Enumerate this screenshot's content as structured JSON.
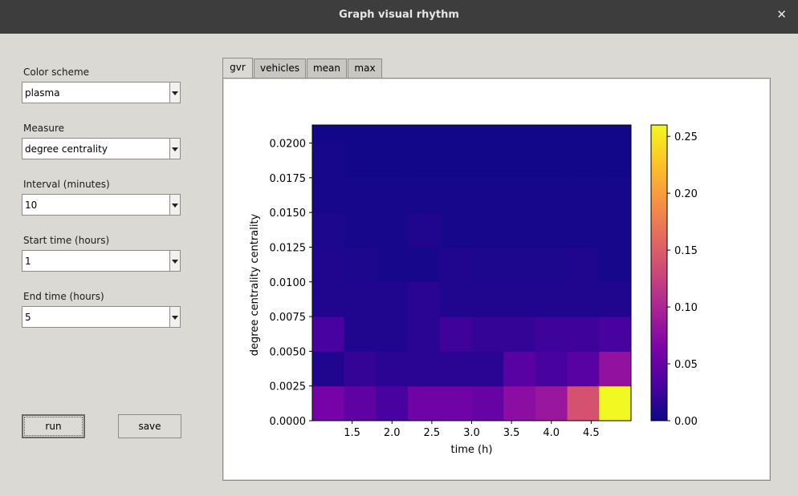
{
  "window": {
    "title": "Graph visual rhythm"
  },
  "controls": {
    "color_scheme": {
      "label": "Color scheme",
      "value": "plasma"
    },
    "measure": {
      "label": "Measure",
      "value": "degree centrality"
    },
    "interval": {
      "label": "Interval (minutes)",
      "value": "10"
    },
    "start_time": {
      "label": "Start time (hours)",
      "value": "1"
    },
    "end_time": {
      "label": "End time (hours)",
      "value": "5"
    },
    "run_label": "run",
    "save_label": "save"
  },
  "tabs": [
    {
      "label": "gvr",
      "active": true
    },
    {
      "label": "vehicles",
      "active": false
    },
    {
      "label": "mean",
      "active": false
    },
    {
      "label": "max",
      "active": false
    }
  ],
  "chart_data": {
    "type": "heatmap",
    "colormap": "plasma",
    "xlabel": "time (h)",
    "ylabel": "degree centrality centrality",
    "x_extent": [
      1.0,
      5.0
    ],
    "y_extent": [
      0.0,
      0.0213
    ],
    "x_ticks": [
      "1.5",
      "2.0",
      "2.5",
      "3.0",
      "3.5",
      "4.0",
      "4.5"
    ],
    "y_ticks": [
      "0.0000",
      "0.0025",
      "0.0050",
      "0.0075",
      "0.0100",
      "0.0125",
      "0.0150",
      "0.0175",
      "0.0200"
    ],
    "colorbar_ticks": [
      "0.00",
      "0.05",
      "0.10",
      "0.15",
      "0.20",
      "0.25"
    ],
    "colorbar_range": [
      0,
      0.26
    ],
    "columns": 10,
    "rows": 10,
    "values": [
      [
        0.06,
        0.045,
        0.03,
        0.055,
        0.055,
        0.05,
        0.075,
        0.085,
        0.14,
        0.26
      ],
      [
        0.01,
        0.02,
        0.015,
        0.015,
        0.015,
        0.015,
        0.04,
        0.03,
        0.04,
        0.08
      ],
      [
        0.03,
        0.01,
        0.01,
        0.015,
        0.025,
        0.02,
        0.02,
        0.025,
        0.025,
        0.03
      ],
      [
        0.01,
        0.01,
        0.01,
        0.015,
        0.01,
        0.01,
        0.01,
        0.01,
        0.01,
        0.01
      ],
      [
        0.01,
        0.008,
        0.005,
        0.005,
        0.01,
        0.008,
        0.008,
        0.008,
        0.01,
        0.005
      ],
      [
        0.008,
        0.005,
        0.005,
        0.01,
        0.005,
        0.005,
        0.005,
        0.005,
        0.005,
        0.005
      ],
      [
        0.005,
        0.005,
        0.005,
        0.005,
        0.005,
        0.005,
        0.005,
        0.005,
        0.005,
        0.005
      ],
      [
        0.005,
        0.003,
        0.003,
        0.003,
        0.003,
        0.003,
        0.003,
        0.003,
        0.003,
        0.003
      ],
      [
        0.003,
        0.003,
        0.003,
        0.003,
        0.003,
        0.003,
        0.003,
        0.003,
        0.003,
        0.003
      ],
      [
        0.002,
        0.002,
        0.002,
        0.002,
        0.002,
        0.002,
        0.002,
        0.002,
        0.002,
        0.002
      ]
    ]
  }
}
